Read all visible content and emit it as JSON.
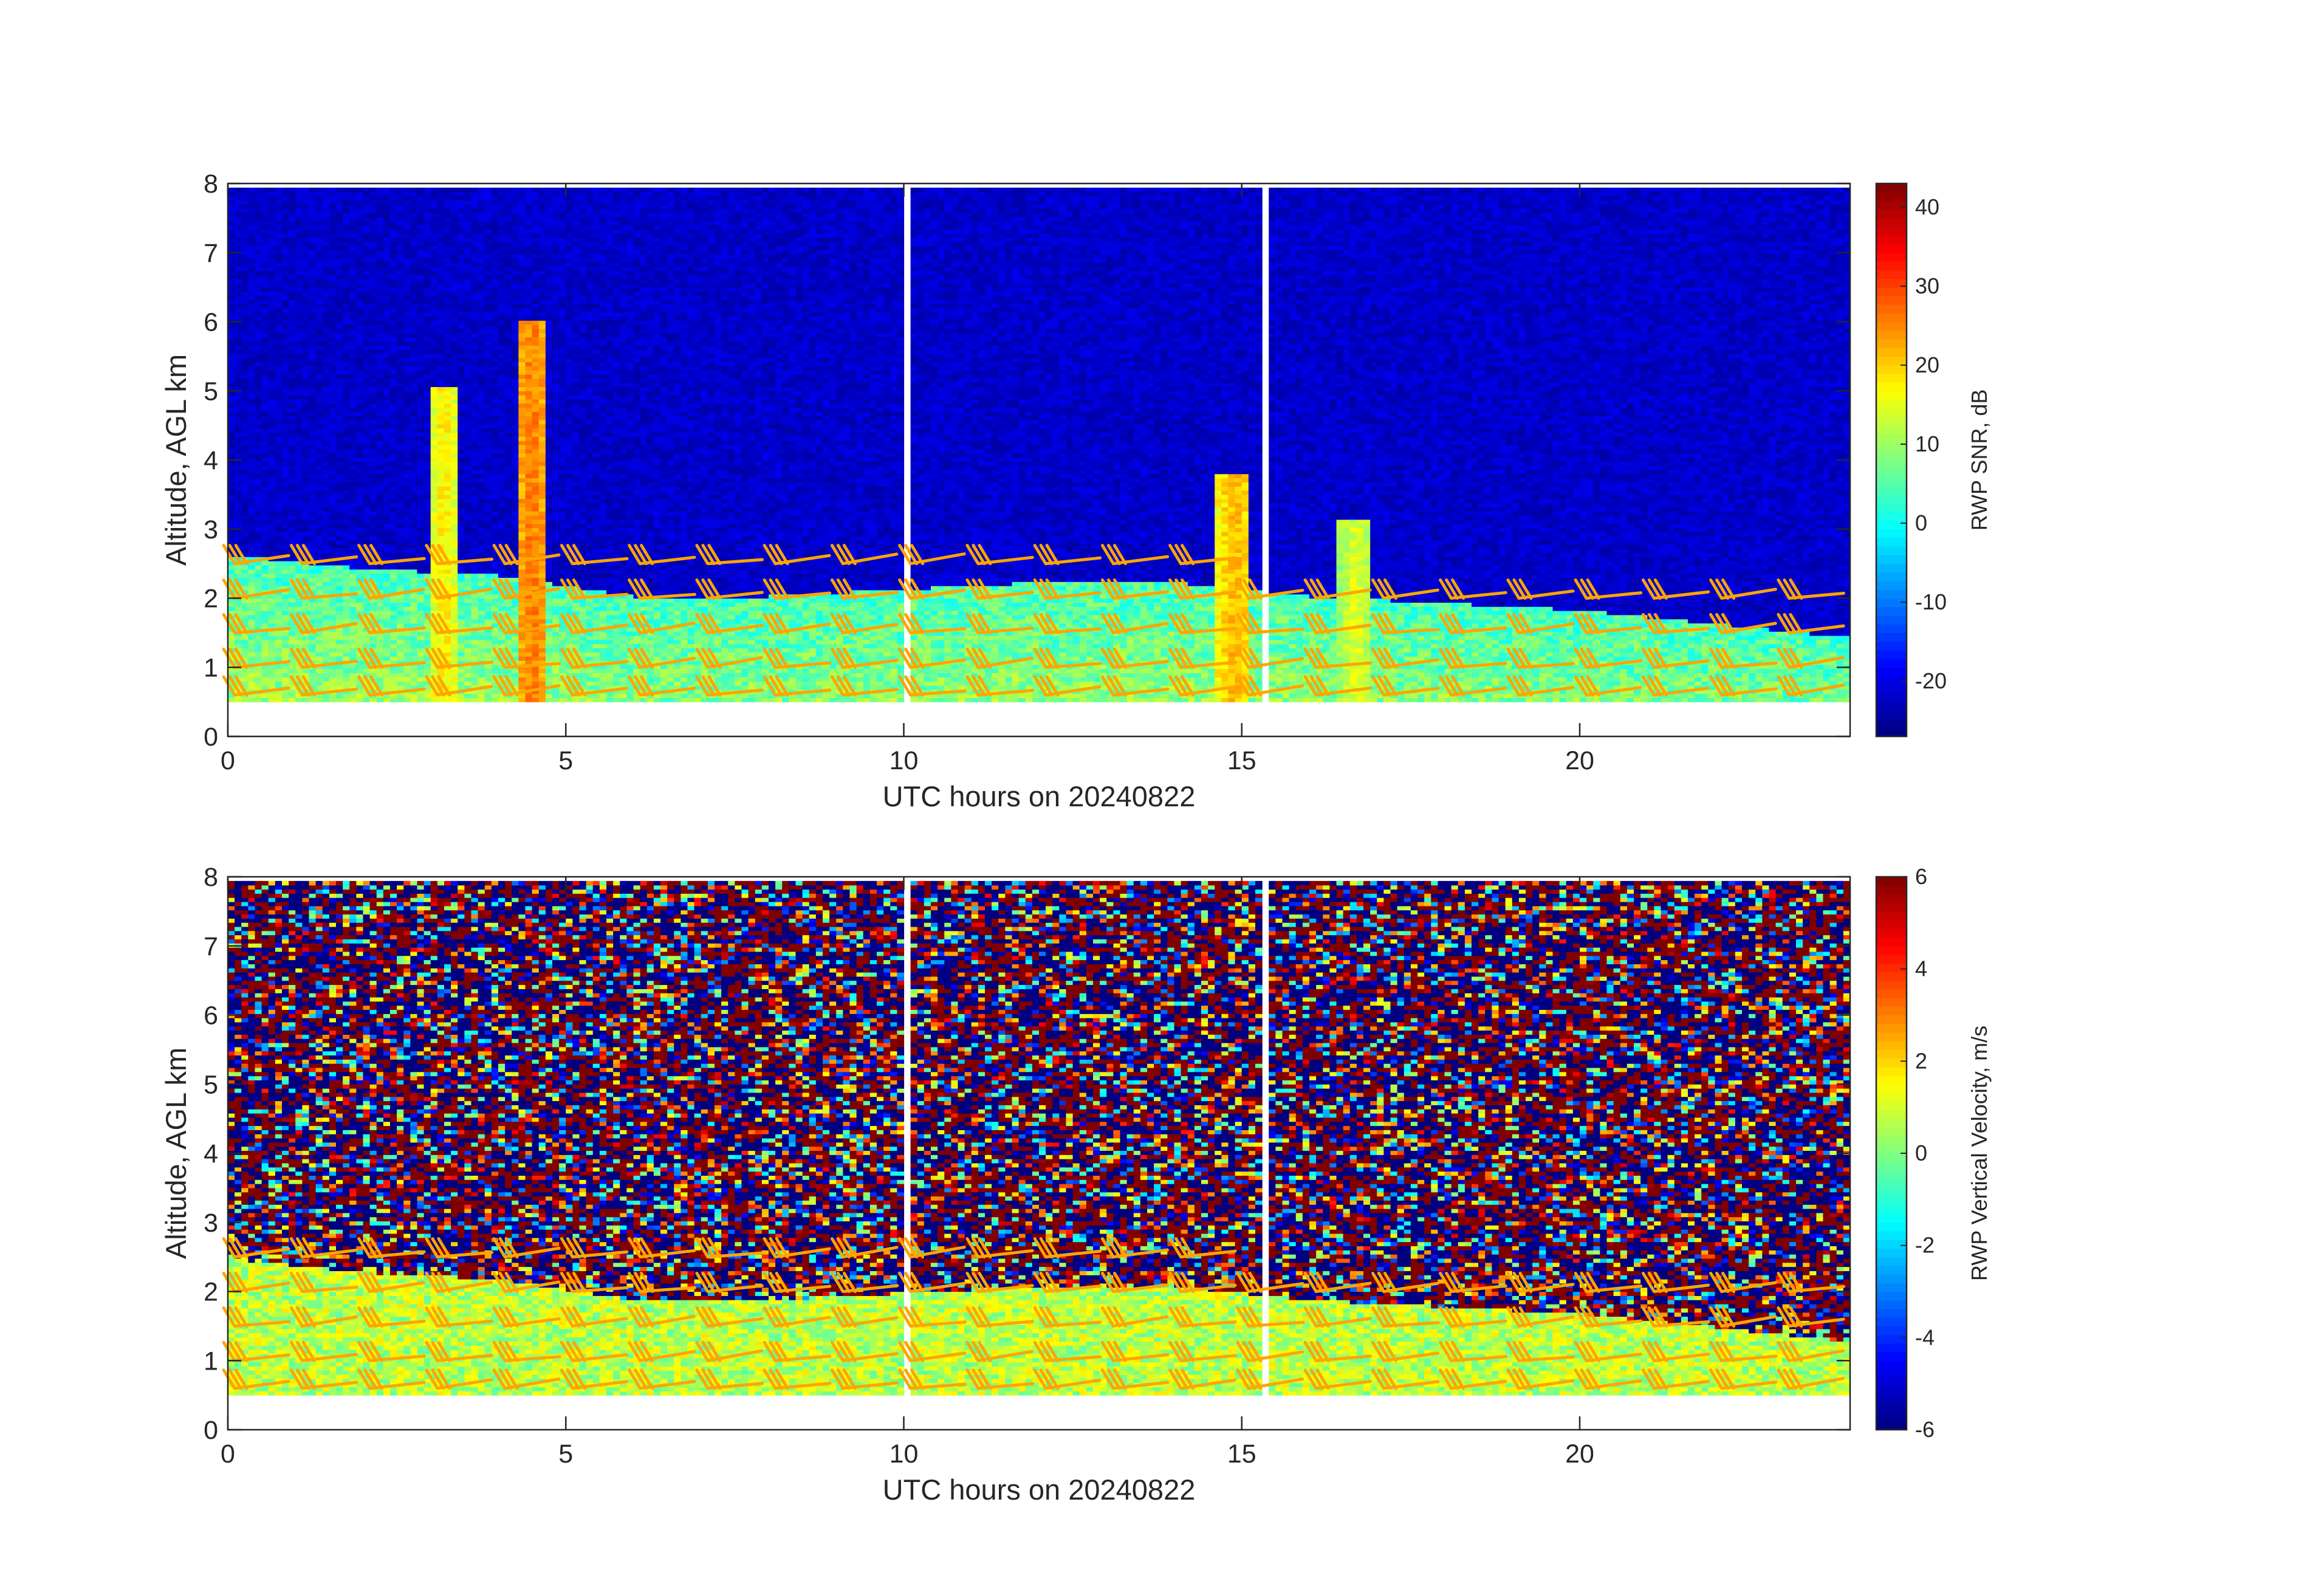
{
  "chart_data": [
    {
      "type": "heatmap",
      "panel": "top",
      "title": "",
      "xlabel": "UTC hours on 20240822",
      "ylabel": "Altitude, AGL km",
      "xlim": [
        0,
        24
      ],
      "ylim": [
        0,
        8
      ],
      "xticks": [
        0,
        5,
        10,
        15,
        20
      ],
      "yticks": [
        0,
        1,
        2,
        3,
        4,
        5,
        6,
        7,
        8
      ],
      "colormap": "jet",
      "colorbar": {
        "label": "RWP SNR, dB",
        "range": [
          -27,
          43
        ],
        "ticks": [
          -20,
          -10,
          0,
          10,
          20,
          30,
          40
        ]
      },
      "data_altitude_range_km": [
        0.5,
        7.9
      ],
      "background_value": -22,
      "boundary_layer_top_km": [
        [
          0,
          2.6
        ],
        [
          2,
          2.4
        ],
        [
          4,
          2.3
        ],
        [
          6,
          2.0
        ],
        [
          8,
          2.0
        ],
        [
          10,
          2.1
        ],
        [
          12,
          2.2
        ],
        [
          14,
          2.2
        ],
        [
          16,
          2.0
        ],
        [
          18,
          1.9
        ],
        [
          20,
          1.8
        ],
        [
          22,
          1.6
        ],
        [
          24,
          1.4
        ]
      ],
      "convective_plumes": [
        {
          "t": 3.2,
          "top_km": 5.0,
          "value": 18
        },
        {
          "t": 4.5,
          "top_km": 6.0,
          "value": 26
        },
        {
          "t": 14.9,
          "top_km": 3.8,
          "value": 22
        },
        {
          "t": 16.7,
          "top_km": 3.1,
          "value": 15
        }
      ],
      "no_data_hours": [
        10.05,
        15.35
      ],
      "overlay": {
        "type": "wind barbs",
        "color": "#ffa500"
      }
    },
    {
      "type": "heatmap",
      "panel": "bottom",
      "title": "",
      "xlabel": "UTC hours on 20240822",
      "ylabel": "Altitude, AGL km",
      "xlim": [
        0,
        24
      ],
      "ylim": [
        0,
        8
      ],
      "xticks": [
        0,
        5,
        10,
        15,
        20
      ],
      "yticks": [
        0,
        1,
        2,
        3,
        4,
        5,
        6,
        7,
        8
      ],
      "colormap": "jet",
      "colorbar": {
        "label": "RWP Vertical Velocity, m/s",
        "range": [
          -6,
          6
        ],
        "ticks": [
          -6,
          -4,
          -2,
          0,
          2,
          4,
          6
        ]
      },
      "data_altitude_range_km": [
        0.5,
        7.9
      ],
      "boundary_layer_value": 0.7,
      "above_boundary_layer": "noise spanning -6 to 6",
      "no_data_hours": [
        10.05,
        15.35
      ],
      "overlay": {
        "type": "wind barbs",
        "color": "#ffa500"
      }
    }
  ]
}
